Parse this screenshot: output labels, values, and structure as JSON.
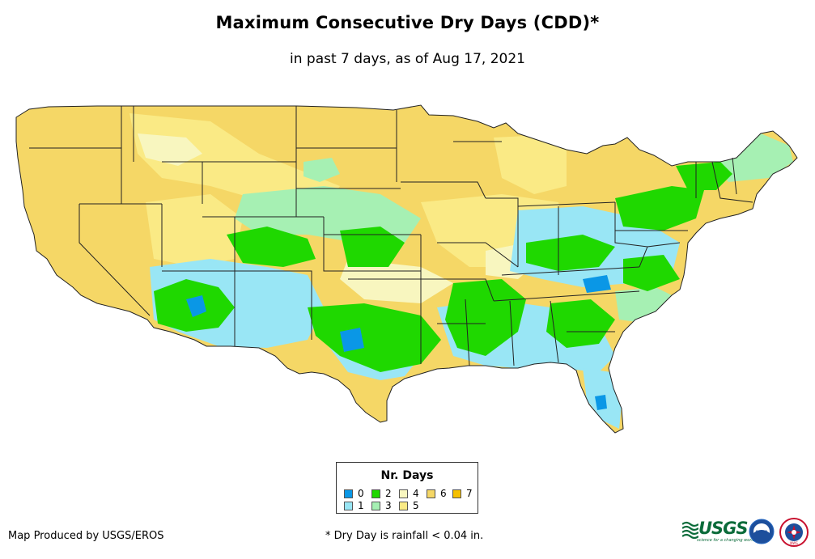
{
  "title": "Maximum Consecutive Dry Days (CDD)*",
  "subtitle": "in past 7 days, as of Aug 17, 2021",
  "legend": {
    "title": "Nr. Days",
    "items": [
      {
        "label": "0",
        "color": "#0a97e6"
      },
      {
        "label": "1",
        "color": "#99e6f5"
      },
      {
        "label": "2",
        "color": "#1fd800"
      },
      {
        "label": "3",
        "color": "#a6f0b3"
      },
      {
        "label": "4",
        "color": "#f8f6bf"
      },
      {
        "label": "5",
        "color": "#faea85"
      },
      {
        "label": "6",
        "color": "#f5d766"
      },
      {
        "label": "7",
        "color": "#f5c000"
      }
    ]
  },
  "footer": {
    "producer": "Map Produced by USGS/EROS",
    "note": "* Dry Day is rainfall < 0.04 in."
  },
  "logos": {
    "usgs": "USGS",
    "usgs_tagline": "science for a changing world",
    "noaa": "noaa",
    "nws": "NWS"
  },
  "colors": {
    "state_border": "#222222",
    "dry_base": "#f5d766",
    "dry_light": "#faea85"
  }
}
